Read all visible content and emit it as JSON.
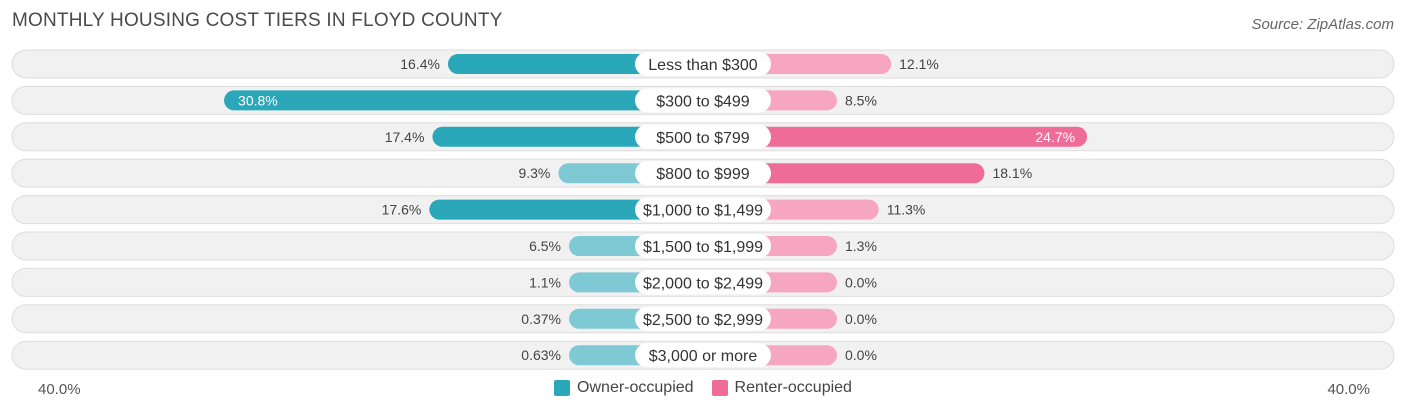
{
  "title": "MONTHLY HOUSING COST TIERS IN FLOYD COUNTY",
  "source": "Source: ZipAtlas.com",
  "colors": {
    "owner": "#2aa7b8",
    "owner_light": "#7ec9d4",
    "renter": "#f06c98",
    "renter_light": "#f7a6c1",
    "row_bg": "#f1f1f1",
    "row_border": "#dddddd"
  },
  "axis": {
    "left_label": "40.0%",
    "right_label": "40.0%"
  },
  "legend": {
    "owner_label": "Owner-occupied",
    "renter_label": "Renter-occupied"
  },
  "chart_data": {
    "type": "bar",
    "orientation": "horizontal-diverging",
    "title": "MONTHLY HOUSING COST TIERS IN FLOYD COUNTY",
    "xlim": [
      -40,
      40
    ],
    "categories": [
      "Less than $300",
      "$300 to $499",
      "$500 to $799",
      "$800 to $999",
      "$1,000 to $1,499",
      "$1,500 to $1,999",
      "$2,000 to $2,499",
      "$2,500 to $2,999",
      "$3,000 or more"
    ],
    "series": [
      {
        "name": "Owner-occupied",
        "values": [
          16.4,
          30.8,
          17.4,
          9.3,
          17.6,
          6.5,
          1.1,
          0.37,
          0.63
        ],
        "labels": [
          "16.4%",
          "30.8%",
          "17.4%",
          "9.3%",
          "17.6%",
          "6.5%",
          "1.1%",
          "0.37%",
          "0.63%"
        ]
      },
      {
        "name": "Renter-occupied",
        "values": [
          12.1,
          8.5,
          24.7,
          18.1,
          11.3,
          1.3,
          0.0,
          0.0,
          0.0
        ],
        "labels": [
          "12.1%",
          "8.5%",
          "24.7%",
          "18.1%",
          "11.3%",
          "1.3%",
          "0.0%",
          "0.0%",
          "0.0%"
        ]
      }
    ]
  }
}
